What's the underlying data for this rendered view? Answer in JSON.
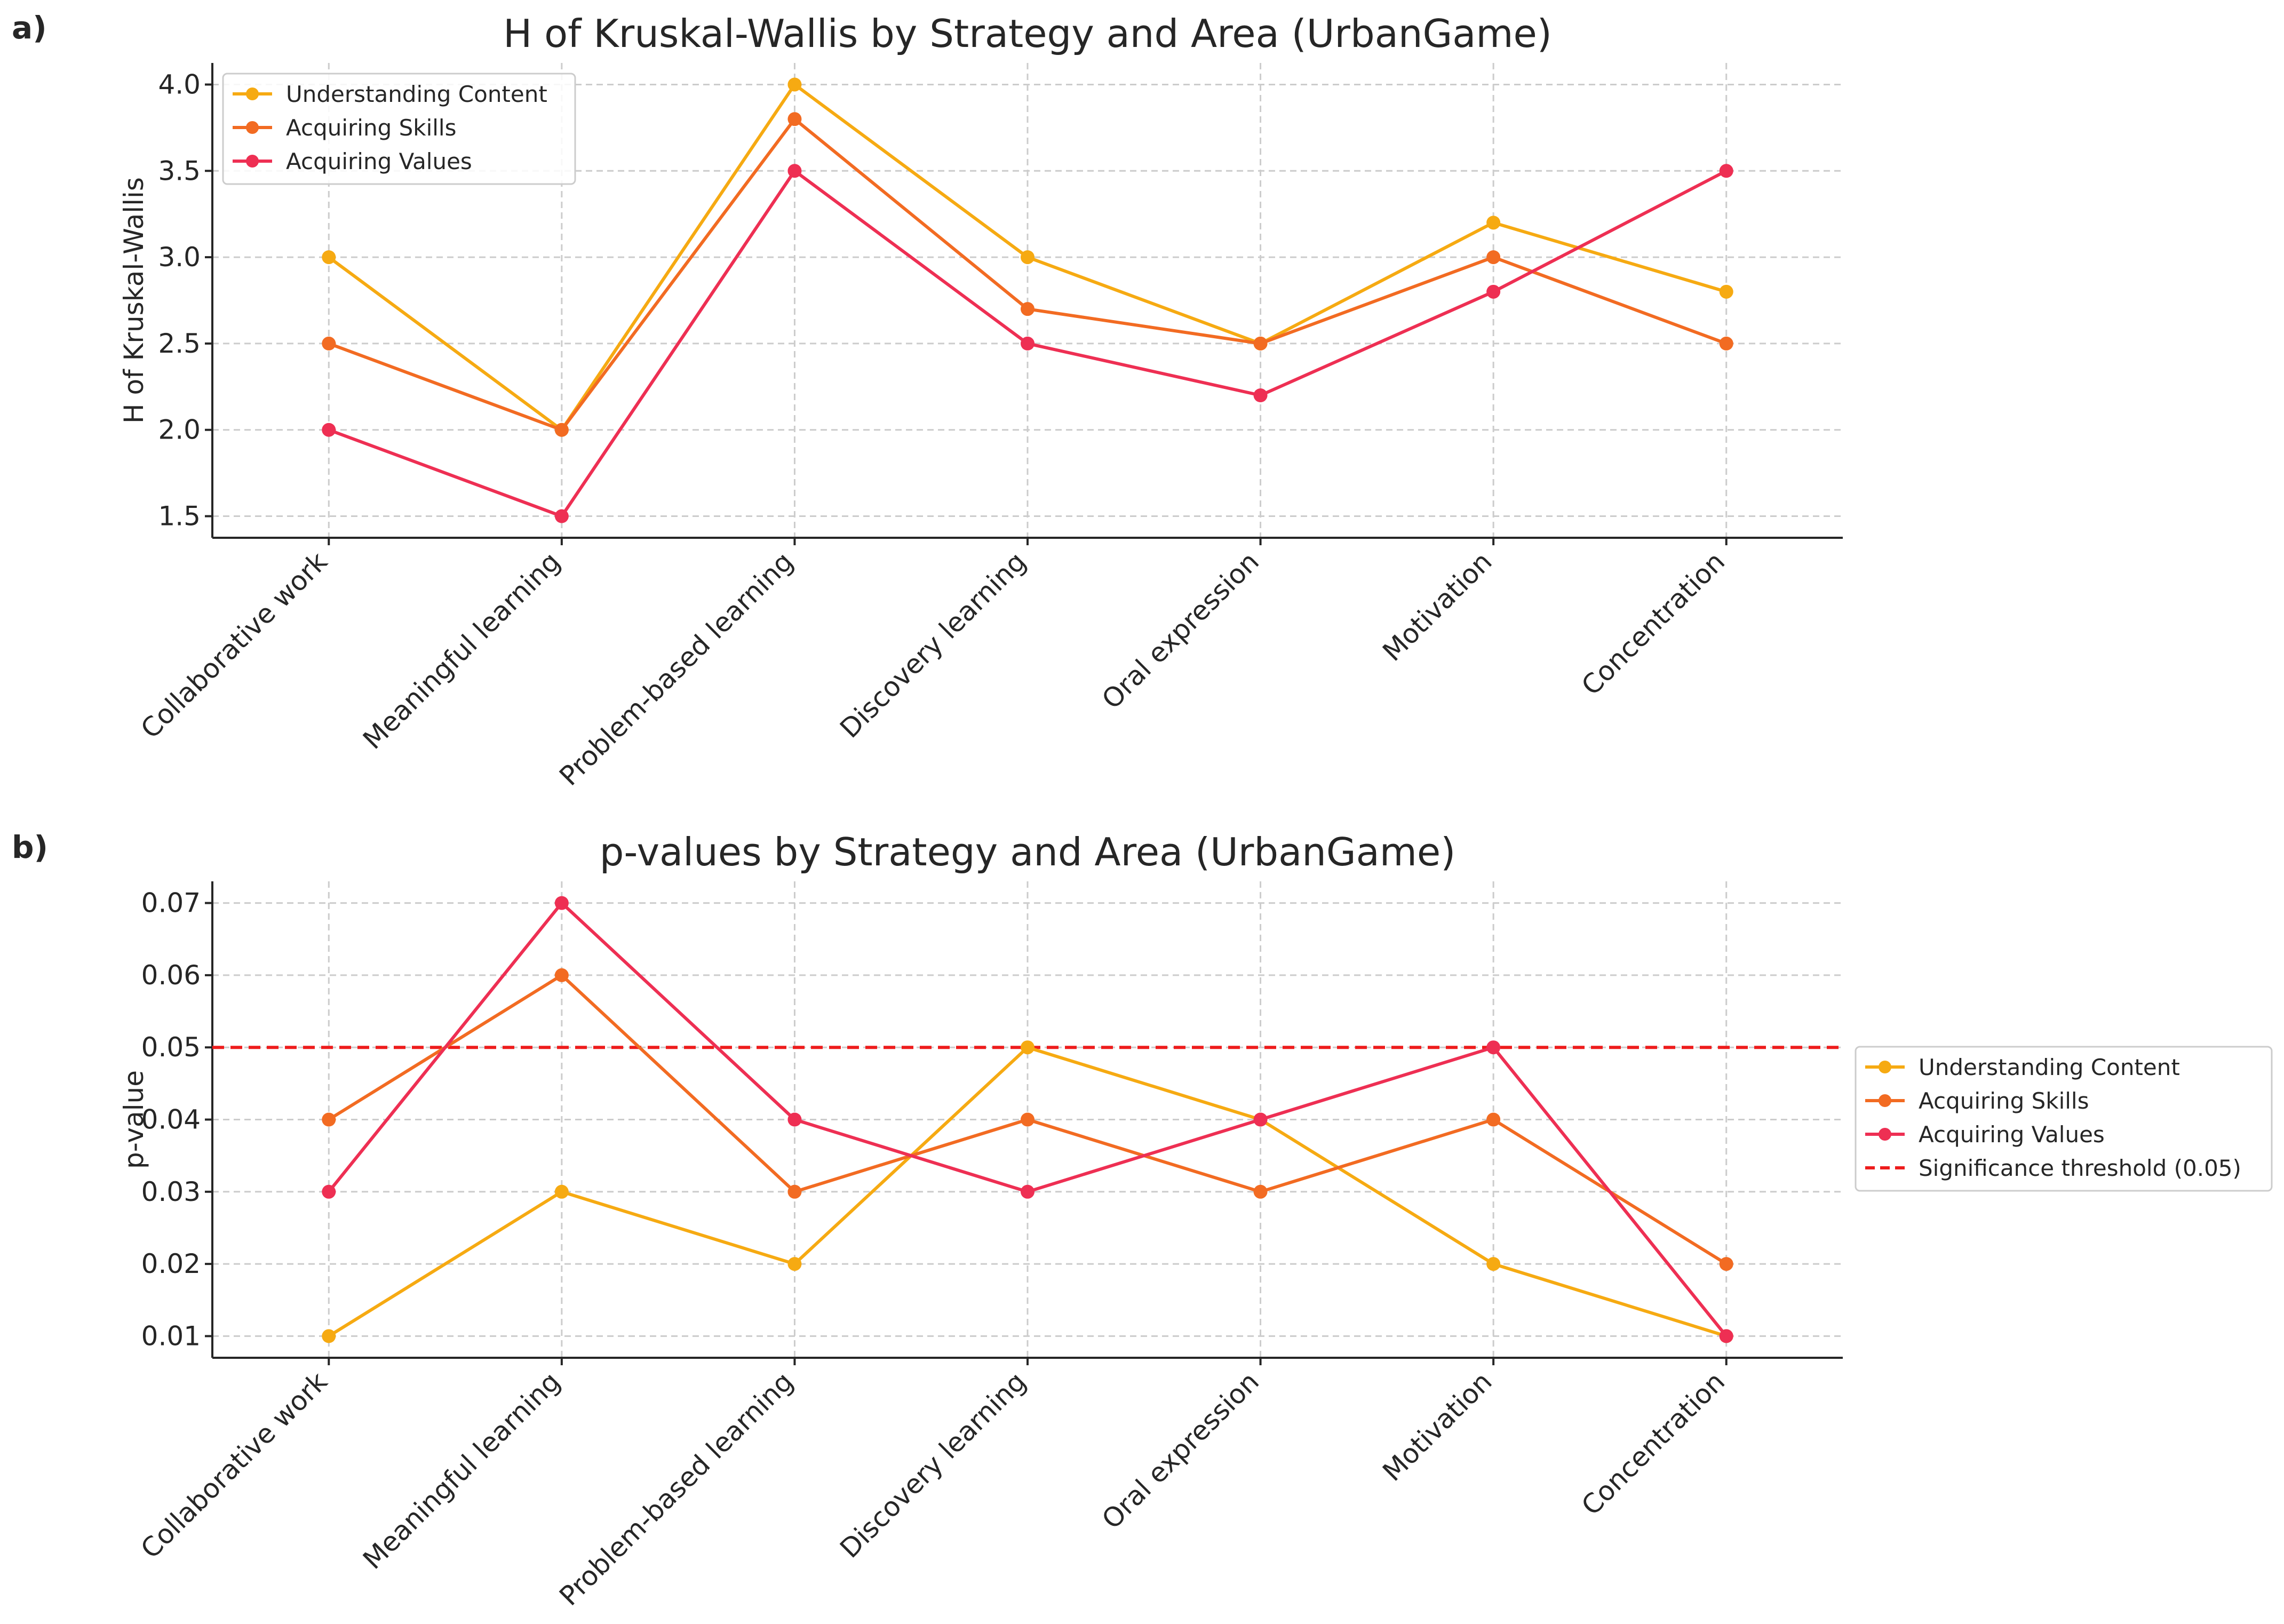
{
  "colors": {
    "understanding": "#f6aa12",
    "skills": "#f26b22",
    "values": "#ee2f53",
    "threshold": "#ee1c1c"
  },
  "chart_data": [
    {
      "panel": "a)",
      "type": "line",
      "title": "H of Kruskal-Wallis by Strategy and Area (UrbanGame)",
      "xlabel": "",
      "ylabel": "H of Kruskal-Wallis",
      "categories": [
        "Collaborative work",
        "Meaningful learning",
        "Problem-based learning",
        "Discovery learning",
        "Oral expression",
        "Motivation",
        "Concentration"
      ],
      "ylim": [
        1.375,
        4.125
      ],
      "yticks": [
        "1.5",
        "2.0",
        "2.5",
        "3.0",
        "3.5",
        "4.0"
      ],
      "ytick_values": [
        1.5,
        2.0,
        2.5,
        3.0,
        3.5,
        4.0
      ],
      "grid": true,
      "legend": "top-left",
      "series": [
        {
          "name": "Understanding Content",
          "color_key": "understanding",
          "values": [
            3.0,
            2.0,
            4.0,
            3.0,
            2.5,
            3.2,
            2.8
          ]
        },
        {
          "name": "Acquiring Skills",
          "color_key": "skills",
          "values": [
            2.5,
            2.0,
            3.8,
            2.7,
            2.5,
            3.0,
            2.5
          ]
        },
        {
          "name": "Acquiring Values",
          "color_key": "values",
          "values": [
            2.0,
            1.5,
            3.5,
            2.5,
            2.2,
            2.8,
            3.5
          ]
        }
      ]
    },
    {
      "panel": "b)",
      "type": "line",
      "title": "p-values by Strategy and Area (UrbanGame)",
      "xlabel": "",
      "ylabel": "p-value",
      "categories": [
        "Collaborative work",
        "Meaningful learning",
        "Problem-based learning",
        "Discovery learning",
        "Oral expression",
        "Motivation",
        "Concentration"
      ],
      "ylim": [
        0.007,
        0.073
      ],
      "yticks": [
        "0.01",
        "0.02",
        "0.03",
        "0.04",
        "0.05",
        "0.06",
        "0.07"
      ],
      "ytick_values": [
        0.01,
        0.02,
        0.03,
        0.04,
        0.05,
        0.06,
        0.07
      ],
      "grid": true,
      "legend": "right",
      "threshold": {
        "name": "Significance threshold (0.05)",
        "value": 0.05,
        "color_key": "threshold"
      },
      "series": [
        {
          "name": "Understanding Content",
          "color_key": "understanding",
          "values": [
            0.01,
            0.03,
            0.02,
            0.05,
            0.04,
            0.02,
            0.01
          ]
        },
        {
          "name": "Acquiring Skills",
          "color_key": "skills",
          "values": [
            0.04,
            0.06,
            0.03,
            0.04,
            0.03,
            0.04,
            0.02
          ]
        },
        {
          "name": "Acquiring Values",
          "color_key": "values",
          "values": [
            0.03,
            0.07,
            0.04,
            0.03,
            0.04,
            0.05,
            0.01
          ]
        }
      ]
    }
  ]
}
